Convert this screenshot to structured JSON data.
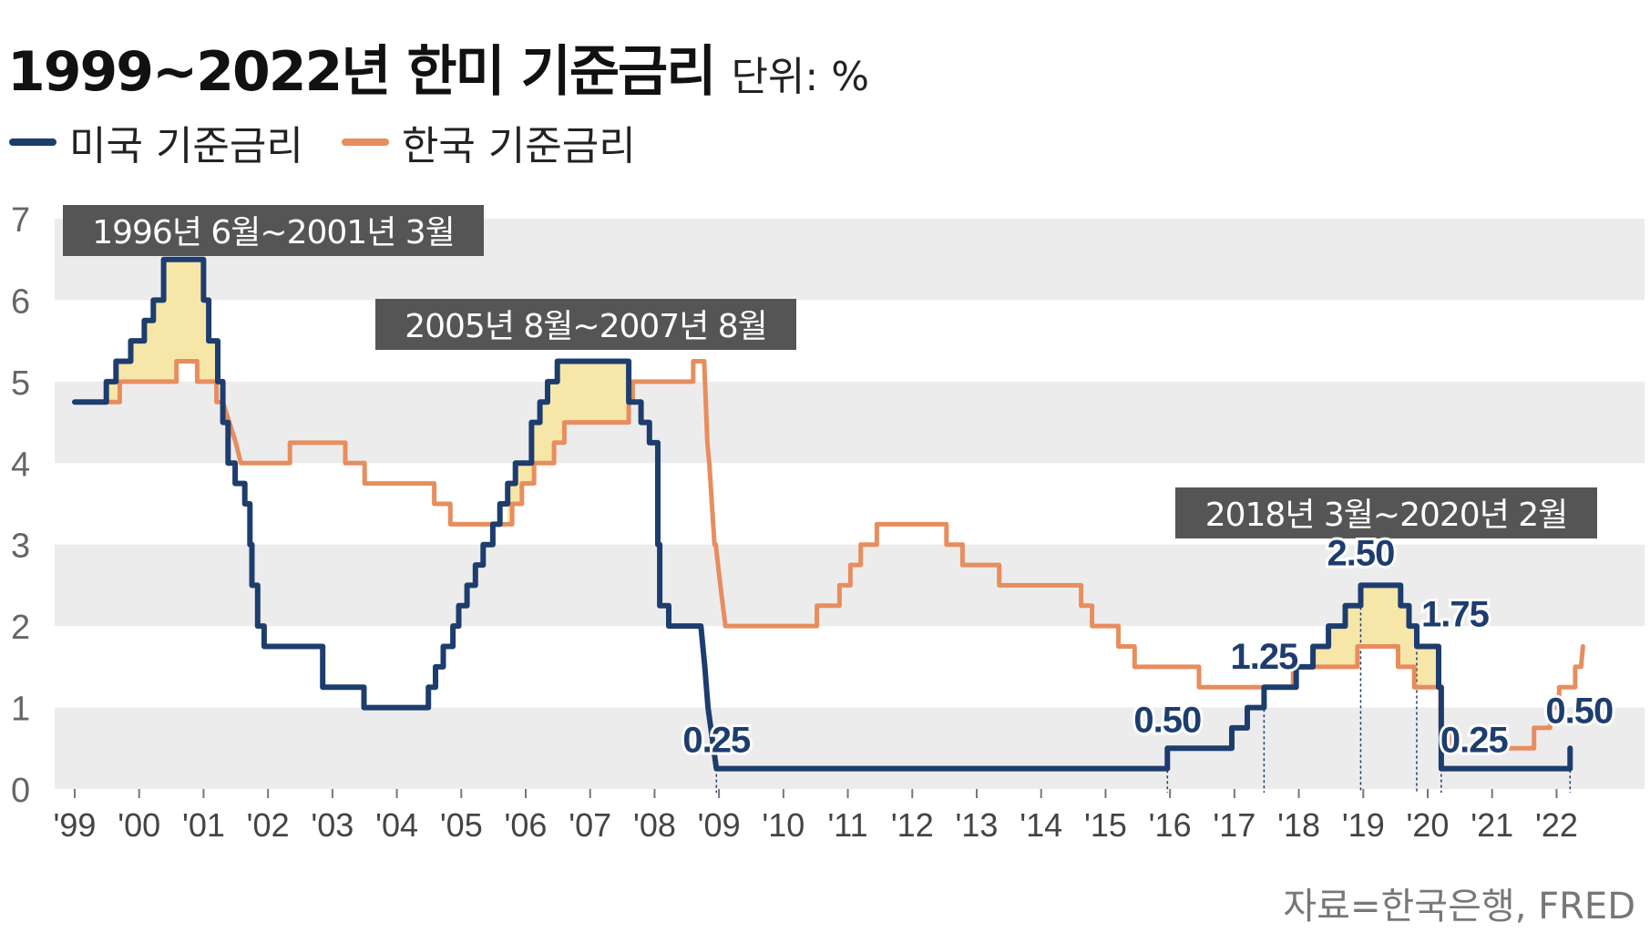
{
  "title": "1999~2022년 한미 기준금리",
  "unit": "단위: %",
  "source": "자료=한국은행, FRED",
  "colors": {
    "us": "#1d3d6e",
    "kr": "#e88d5e",
    "highlight": "#f6e6a8",
    "band": "#ececec",
    "box": "#555555"
  },
  "chart_data": {
    "type": "line",
    "title": "1999~2022년 한미 기준금리",
    "ylabel": "",
    "xlabel": "",
    "ylim": [
      0,
      7
    ],
    "xlim": [
      1999.0,
      2022.8
    ],
    "yticks": [
      "0",
      "1",
      "2",
      "3",
      "4",
      "5",
      "6",
      "7"
    ],
    "xticks": [
      "'99",
      "'00",
      "'01",
      "'02",
      "'03",
      "'04",
      "'05",
      "'06",
      "'07",
      "'08",
      "'09",
      "'10",
      "'11",
      "'12",
      "'13",
      "'14",
      "'15",
      "'16",
      "'17",
      "'18",
      "'19",
      "'20",
      "'21",
      "'22"
    ],
    "legend_position": "top-left",
    "series": [
      {
        "name": "미국 기준금리",
        "points": [
          [
            1999.0,
            4.75
          ],
          [
            1999.49,
            4.75
          ],
          [
            1999.49,
            5.0
          ],
          [
            1999.64,
            5.0
          ],
          [
            1999.64,
            5.25
          ],
          [
            1999.87,
            5.25
          ],
          [
            1999.87,
            5.5
          ],
          [
            2000.08,
            5.5
          ],
          [
            2000.08,
            5.75
          ],
          [
            2000.22,
            5.75
          ],
          [
            2000.22,
            6.0
          ],
          [
            2000.38,
            6.0
          ],
          [
            2000.38,
            6.5
          ],
          [
            2001.0,
            6.5
          ],
          [
            2001.0,
            6.0
          ],
          [
            2001.08,
            6.0
          ],
          [
            2001.08,
            5.5
          ],
          [
            2001.22,
            5.5
          ],
          [
            2001.22,
            5.0
          ],
          [
            2001.3,
            5.0
          ],
          [
            2001.3,
            4.5
          ],
          [
            2001.38,
            4.5
          ],
          [
            2001.38,
            4.0
          ],
          [
            2001.49,
            4.0
          ],
          [
            2001.49,
            3.75
          ],
          [
            2001.64,
            3.75
          ],
          [
            2001.64,
            3.5
          ],
          [
            2001.72,
            3.5
          ],
          [
            2001.72,
            3.0
          ],
          [
            2001.75,
            3.0
          ],
          [
            2001.75,
            2.5
          ],
          [
            2001.84,
            2.5
          ],
          [
            2001.84,
            2.0
          ],
          [
            2001.94,
            2.0
          ],
          [
            2001.94,
            1.75
          ],
          [
            2002.85,
            1.75
          ],
          [
            2002.85,
            1.25
          ],
          [
            2003.49,
            1.25
          ],
          [
            2003.49,
            1.0
          ],
          [
            2004.49,
            1.0
          ],
          [
            2004.49,
            1.25
          ],
          [
            2004.6,
            1.25
          ],
          [
            2004.6,
            1.5
          ],
          [
            2004.72,
            1.5
          ],
          [
            2004.72,
            1.75
          ],
          [
            2004.87,
            1.75
          ],
          [
            2004.87,
            2.0
          ],
          [
            2004.96,
            2.0
          ],
          [
            2004.96,
            2.25
          ],
          [
            2005.09,
            2.25
          ],
          [
            2005.09,
            2.5
          ],
          [
            2005.22,
            2.5
          ],
          [
            2005.22,
            2.75
          ],
          [
            2005.34,
            2.75
          ],
          [
            2005.34,
            3.0
          ],
          [
            2005.49,
            3.0
          ],
          [
            2005.49,
            3.25
          ],
          [
            2005.6,
            3.25
          ],
          [
            2005.6,
            3.5
          ],
          [
            2005.72,
            3.5
          ],
          [
            2005.72,
            3.75
          ],
          [
            2005.84,
            3.75
          ],
          [
            2005.84,
            4.0
          ],
          [
            2005.96,
            4.0
          ],
          [
            2006.09,
            4.0
          ],
          [
            2006.09,
            4.5
          ],
          [
            2006.22,
            4.5
          ],
          [
            2006.22,
            4.75
          ],
          [
            2006.34,
            4.75
          ],
          [
            2006.34,
            5.0
          ],
          [
            2006.49,
            5.0
          ],
          [
            2006.49,
            5.25
          ],
          [
            2007.6,
            5.25
          ],
          [
            2007.6,
            4.75
          ],
          [
            2007.79,
            4.75
          ],
          [
            2007.79,
            4.5
          ],
          [
            2007.92,
            4.5
          ],
          [
            2007.92,
            4.25
          ],
          [
            2008.05,
            4.25
          ],
          [
            2008.05,
            3.0
          ],
          [
            2008.08,
            3.0
          ],
          [
            2008.08,
            2.25
          ],
          [
            2008.22,
            2.25
          ],
          [
            2008.22,
            2.0
          ],
          [
            2008.33,
            2.0
          ],
          [
            2008.72,
            2.0
          ],
          [
            2008.78,
            1.5
          ],
          [
            2008.83,
            1.0
          ],
          [
            2008.96,
            0.25
          ],
          [
            2015.96,
            0.25
          ],
          [
            2015.96,
            0.5
          ],
          [
            2016.96,
            0.5
          ],
          [
            2016.96,
            0.75
          ],
          [
            2017.2,
            0.75
          ],
          [
            2017.2,
            1.0
          ],
          [
            2017.46,
            1.0
          ],
          [
            2017.46,
            1.25
          ],
          [
            2017.96,
            1.25
          ],
          [
            2017.96,
            1.5
          ],
          [
            2018.22,
            1.5
          ],
          [
            2018.22,
            1.75
          ],
          [
            2018.46,
            1.75
          ],
          [
            2018.46,
            2.0
          ],
          [
            2018.72,
            2.0
          ],
          [
            2018.72,
            2.25
          ],
          [
            2018.96,
            2.25
          ],
          [
            2018.96,
            2.5
          ],
          [
            2019.58,
            2.5
          ],
          [
            2019.58,
            2.25
          ],
          [
            2019.71,
            2.25
          ],
          [
            2019.71,
            2.0
          ],
          [
            2019.83,
            2.0
          ],
          [
            2019.83,
            1.75
          ],
          [
            2020.17,
            1.75
          ],
          [
            2020.17,
            1.25
          ],
          [
            2020.21,
            1.25
          ],
          [
            2020.21,
            0.25
          ],
          [
            2022.21,
            0.25
          ],
          [
            2022.21,
            0.5
          ]
        ]
      },
      {
        "name": "한국 기준금리",
        "points": [
          [
            1999.0,
            4.75
          ],
          [
            1999.7,
            4.75
          ],
          [
            1999.7,
            5.0
          ],
          [
            2000.14,
            5.0
          ],
          [
            2000.14,
            5.0
          ],
          [
            2000.58,
            5.0
          ],
          [
            2000.58,
            5.25
          ],
          [
            2000.9,
            5.25
          ],
          [
            2000.9,
            5.0
          ],
          [
            2001.2,
            5.0
          ],
          [
            2001.2,
            4.75
          ],
          [
            2001.3,
            4.75
          ],
          [
            2001.5,
            4.25
          ],
          [
            2001.58,
            4.0
          ],
          [
            2001.66,
            4.0
          ],
          [
            2002.34,
            4.0
          ],
          [
            2002.34,
            4.25
          ],
          [
            2003.2,
            4.25
          ],
          [
            2003.2,
            4.0
          ],
          [
            2003.5,
            4.0
          ],
          [
            2003.5,
            3.75
          ],
          [
            2004.58,
            3.75
          ],
          [
            2004.58,
            3.5
          ],
          [
            2004.83,
            3.5
          ],
          [
            2004.83,
            3.25
          ],
          [
            2005.79,
            3.25
          ],
          [
            2005.79,
            3.5
          ],
          [
            2005.94,
            3.5
          ],
          [
            2005.94,
            3.75
          ],
          [
            2006.13,
            3.75
          ],
          [
            2006.13,
            4.0
          ],
          [
            2006.44,
            4.0
          ],
          [
            2006.44,
            4.25
          ],
          [
            2006.6,
            4.25
          ],
          [
            2006.6,
            4.5
          ],
          [
            2007.6,
            4.5
          ],
          [
            2007.6,
            4.75
          ],
          [
            2007.66,
            4.75
          ],
          [
            2007.66,
            5.0
          ],
          [
            2008.6,
            5.0
          ],
          [
            2008.6,
            5.25
          ],
          [
            2008.77,
            5.25
          ],
          [
            2008.82,
            4.25
          ],
          [
            2008.85,
            4.0
          ],
          [
            2008.93,
            3.0
          ],
          [
            2008.95,
            3.0
          ],
          [
            2009.02,
            2.5
          ],
          [
            2009.1,
            2.0
          ],
          [
            2010.52,
            2.0
          ],
          [
            2010.52,
            2.25
          ],
          [
            2010.87,
            2.25
          ],
          [
            2010.87,
            2.5
          ],
          [
            2011.04,
            2.5
          ],
          [
            2011.04,
            2.75
          ],
          [
            2011.2,
            2.75
          ],
          [
            2011.2,
            3.0
          ],
          [
            2011.45,
            3.0
          ],
          [
            2011.45,
            3.25
          ],
          [
            2012.53,
            3.25
          ],
          [
            2012.53,
            3.0
          ],
          [
            2012.78,
            3.0
          ],
          [
            2012.78,
            2.75
          ],
          [
            2013.35,
            2.75
          ],
          [
            2013.35,
            2.5
          ],
          [
            2014.62,
            2.5
          ],
          [
            2014.62,
            2.25
          ],
          [
            2014.79,
            2.25
          ],
          [
            2014.79,
            2.0
          ],
          [
            2015.2,
            2.0
          ],
          [
            2015.2,
            1.75
          ],
          [
            2015.45,
            1.75
          ],
          [
            2015.45,
            1.5
          ],
          [
            2016.45,
            1.5
          ],
          [
            2016.45,
            1.25
          ],
          [
            2017.91,
            1.25
          ],
          [
            2017.91,
            1.5
          ],
          [
            2018.91,
            1.5
          ],
          [
            2018.91,
            1.75
          ],
          [
            2019.54,
            1.75
          ],
          [
            2019.54,
            1.5
          ],
          [
            2019.79,
            1.5
          ],
          [
            2019.79,
            1.25
          ],
          [
            2020.2,
            1.25
          ],
          [
            2020.2,
            0.75
          ],
          [
            2020.38,
            0.75
          ],
          [
            2020.38,
            0.5
          ],
          [
            2021.65,
            0.5
          ],
          [
            2021.65,
            0.75
          ],
          [
            2021.9,
            0.75
          ],
          [
            2021.9,
            1.0
          ],
          [
            2022.04,
            1.0
          ],
          [
            2022.04,
            1.25
          ],
          [
            2022.29,
            1.25
          ],
          [
            2022.29,
            1.5
          ],
          [
            2022.38,
            1.5
          ],
          [
            2022.41,
            1.75
          ]
        ]
      }
    ],
    "highlight_periods": [
      {
        "label": "1996년 6월~2001년 3월",
        "from": 1999.49,
        "to": 2001.22
      },
      {
        "label": "2005년 8월~2007년 8월",
        "from": 2005.72,
        "to": 2007.62
      },
      {
        "label": "2018년 3월~2020년 2월",
        "from": 2017.91,
        "to": 2020.17
      }
    ],
    "annotations": [
      {
        "text": "0.25",
        "x": 2008.96,
        "y": 0.25
      },
      {
        "text": "0.50",
        "x": 2015.96,
        "y": 0.5
      },
      {
        "text": "1.25",
        "x": 2017.46,
        "y": 1.25
      },
      {
        "text": "2.50",
        "x": 2018.96,
        "y": 2.5
      },
      {
        "text": "1.75",
        "x": 2019.83,
        "y": 1.75
      },
      {
        "text": "0.25",
        "x": 2020.21,
        "y": 0.25
      },
      {
        "text": "0.50",
        "x": 2022.21,
        "y": 0.5
      }
    ]
  }
}
